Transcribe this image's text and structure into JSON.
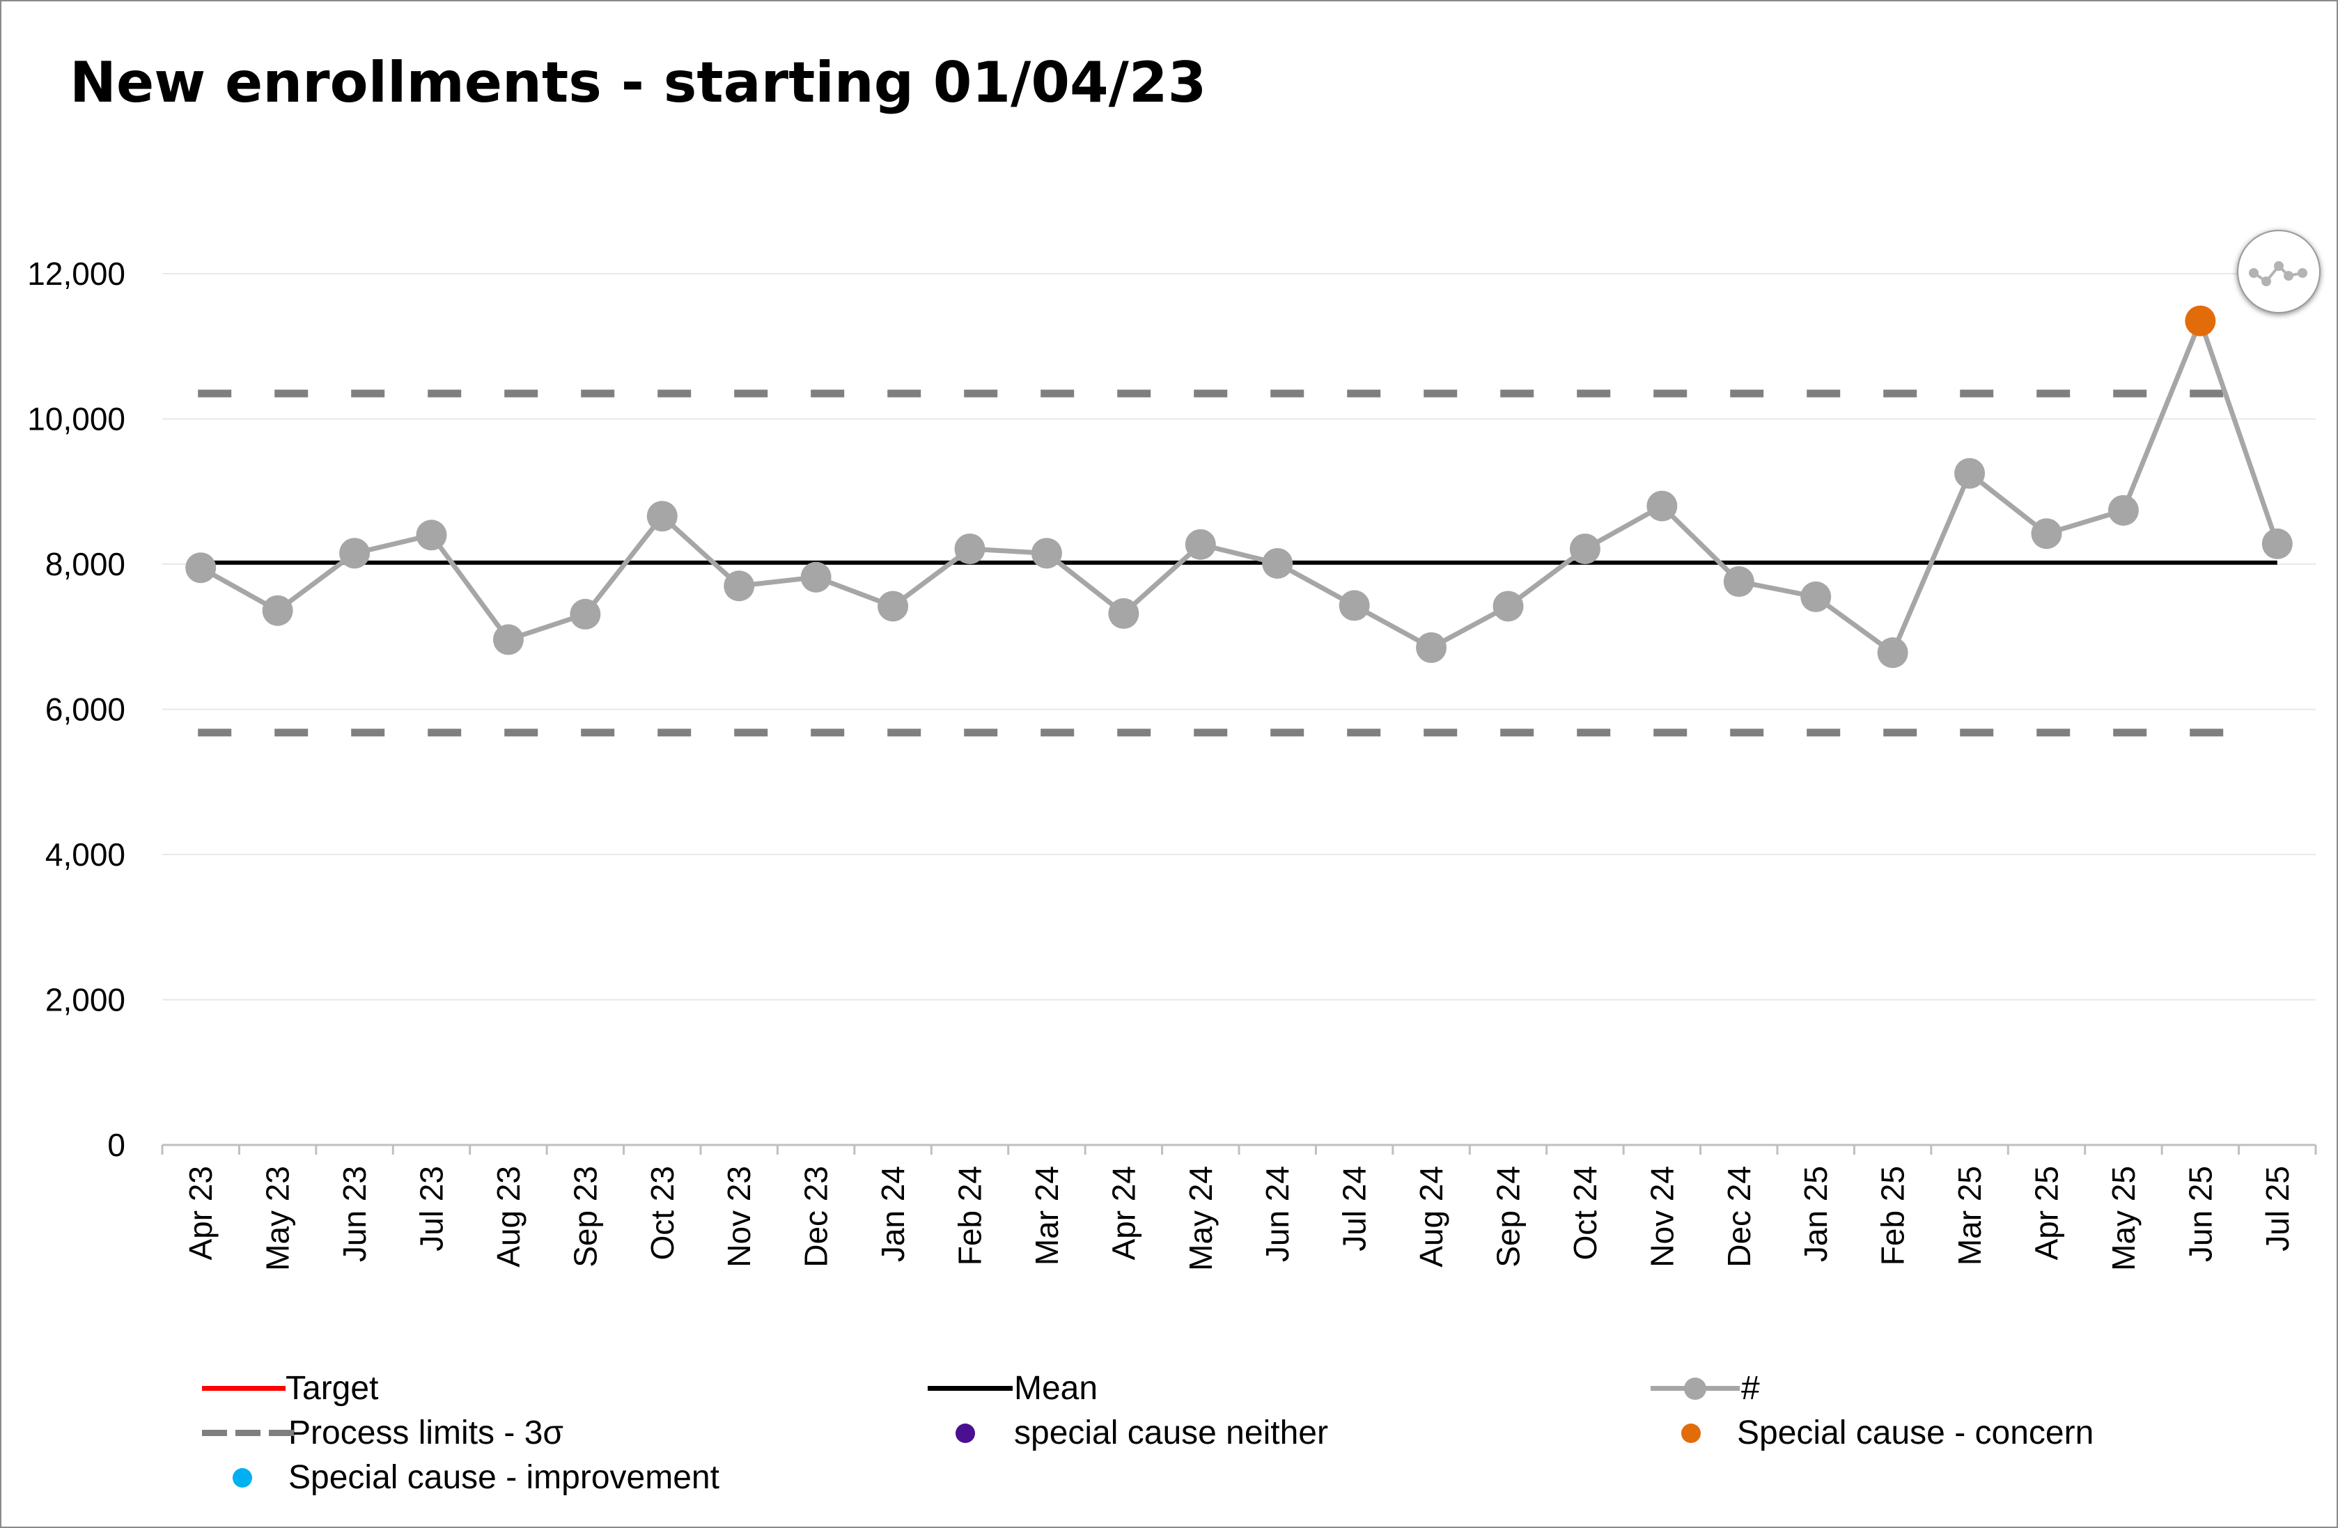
{
  "title": "New enrollments - starting 01/04/23",
  "colors": {
    "series": "#a6a6a6",
    "mean": "#000000",
    "limits": "#7f7f7f",
    "target": "#ff0000",
    "special_neither": "#4b0f91",
    "special_concern": "#e36c0a",
    "special_improvement": "#00b0f0",
    "gridline": "#e8e8e8"
  },
  "chart_data": {
    "type": "line",
    "title": "New enrollments - starting 01/04/23",
    "categories": [
      "Apr 23",
      "May 23",
      "Jun 23",
      "Jul 23",
      "Aug 23",
      "Sep 23",
      "Oct 23",
      "Nov 23",
      "Dec 23",
      "Jan 24",
      "Feb 24",
      "Mar 24",
      "Apr 24",
      "May 24",
      "Jun 24",
      "Jul 24",
      "Aug 24",
      "Sep 24",
      "Oct 24",
      "Nov 24",
      "Dec 24",
      "Jan 25",
      "Feb 25",
      "Mar 25",
      "Apr 25",
      "May 25",
      "Jun 25",
      "Jul 25"
    ],
    "series": [
      {
        "name": "#",
        "values": [
          7950,
          7360,
          8150,
          8400,
          6960,
          7310,
          8660,
          7700,
          7820,
          7420,
          8210,
          8150,
          7320,
          8270,
          8010,
          7430,
          6850,
          7420,
          8210,
          8800,
          7760,
          7550,
          6780,
          9250,
          8420,
          8740,
          11350,
          8280
        ]
      },
      {
        "name": "Mean",
        "values": [
          8020,
          8020,
          8020,
          8020,
          8020,
          8020,
          8020,
          8020,
          8020,
          8020,
          8020,
          8020,
          8020,
          8020,
          8020,
          8020,
          8020,
          8020,
          8020,
          8020,
          8020,
          8020,
          8020,
          8020,
          8020,
          8020,
          8020,
          8020
        ]
      },
      {
        "name": "Process limits - 3σ",
        "upper": 10350,
        "lower": 5680
      }
    ],
    "special_cause_concern": [
      {
        "category": "Jun 25",
        "value": 11350
      }
    ],
    "yticks": [
      "0",
      "2,000",
      "4,000",
      "6,000",
      "8,000",
      "10,000",
      "12,000"
    ],
    "ylim": [
      0,
      12000
    ],
    "grid": true,
    "legend_position": "bottom"
  },
  "legend": {
    "target": "Target",
    "mean": "Mean",
    "series": "#",
    "limits": "Process limits - 3σ",
    "neither": "special cause neither",
    "concern": "Special cause - concern",
    "improvement": "Special cause  - improvement"
  },
  "badge_icon": "spc-icon"
}
